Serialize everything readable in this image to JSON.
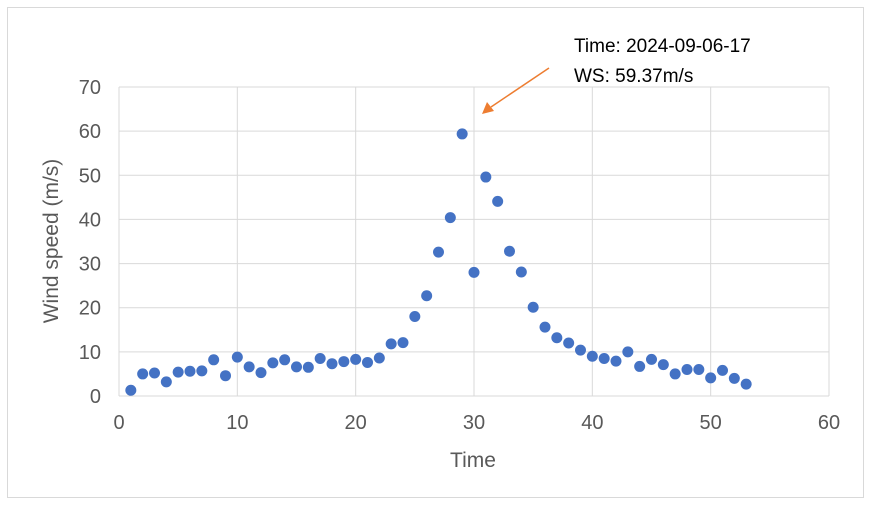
{
  "chart_data": {
    "type": "scatter",
    "xlabel": "Time",
    "ylabel": "Wind speed (m/s)",
    "xlim": [
      0,
      60
    ],
    "ylim": [
      0,
      70
    ],
    "xticks": [
      0,
      10,
      20,
      30,
      40,
      50,
      60
    ],
    "yticks": [
      0,
      10,
      20,
      30,
      40,
      50,
      60,
      70
    ],
    "grid": true,
    "legend": "none",
    "series": [
      {
        "color": "#4472c4",
        "x": [
          1,
          2,
          3,
          4,
          5,
          6,
          7,
          8,
          9,
          10,
          11,
          12,
          13,
          14,
          15,
          16,
          17,
          18,
          19,
          20,
          21,
          22,
          23,
          24,
          25,
          26,
          27,
          28,
          29,
          30,
          31,
          32,
          33,
          34,
          35,
          36,
          37,
          38,
          39,
          40,
          41,
          42,
          43,
          44,
          45,
          46,
          47,
          48,
          49,
          50,
          51,
          52,
          53
        ],
        "y": [
          1.3,
          5.0,
          5.2,
          3.2,
          5.4,
          5.6,
          5.7,
          8.2,
          4.6,
          8.8,
          6.6,
          5.3,
          7.5,
          8.2,
          6.6,
          6.5,
          8.5,
          7.3,
          7.8,
          8.3,
          7.6,
          8.6,
          11.8,
          12.1,
          18.0,
          22.7,
          32.6,
          40.4,
          59.37,
          28.0,
          49.6,
          44.1,
          32.8,
          28.1,
          20.1,
          15.6,
          13.2,
          12.0,
          10.4,
          9.0,
          8.5,
          7.9,
          10.0,
          6.7,
          8.3,
          7.1,
          5.0,
          6.0,
          6.0,
          4.1,
          5.8,
          4.0,
          2.7
        ]
      }
    ],
    "annotation": {
      "line1": "Time: 2024-09-06-17",
      "line2": "WS: 59.37m/s",
      "arrow_color": "#ed7d31"
    }
  }
}
